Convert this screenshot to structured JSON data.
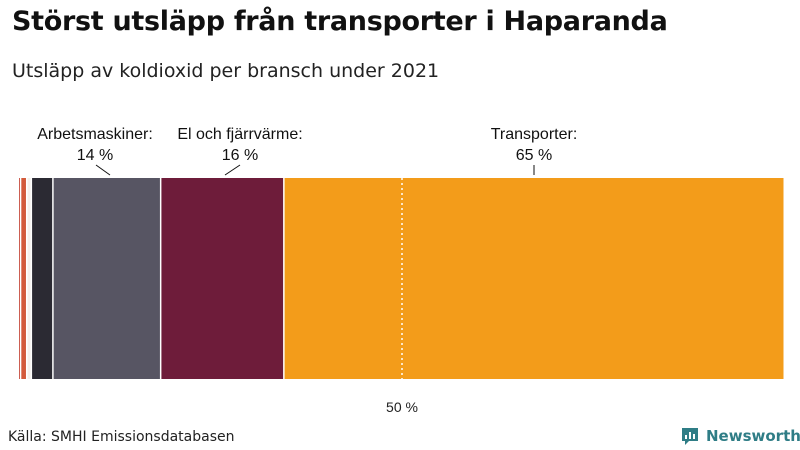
{
  "title": "Störst utsläpp från transporter i Haparanda",
  "subtitle": "Utsläpp av koldioxid per bransch under 2021",
  "source": "Källa: SMHI Emissionsdatabasen",
  "brand": {
    "name": "Newsworthy",
    "icon": "newsworthy-logo-icon",
    "color": "#2f7d86"
  },
  "chart_data": {
    "type": "bar",
    "orientation": "horizontal-stacked-100",
    "segments": [
      {
        "name": "segment-1",
        "value": 0.3,
        "color": "#c0392b"
      },
      {
        "name": "segment-2",
        "value": 0.8,
        "color": "#d35a3a"
      },
      {
        "name": "segment-3",
        "value": 0.6,
        "color": "#f5f0eb"
      },
      {
        "name": "segment-4",
        "value": 2.8,
        "color": "#2b2a33"
      },
      {
        "name": "Arbetsmaskiner",
        "value": 14,
        "color": "#575563",
        "label": "Arbetsmaskiner:",
        "value_label": "14 %"
      },
      {
        "name": "El och fjärrvärme",
        "value": 16,
        "color": "#6e1c3a",
        "label": "El och fjärrvärme:",
        "value_label": "16 %"
      },
      {
        "name": "Transporter",
        "value": 65,
        "color": "#f39c1a",
        "label": "Transporter:",
        "value_label": "65 %"
      }
    ],
    "reference_line": {
      "value": 50,
      "label": "50 %"
    },
    "xlim": [
      0,
      100
    ]
  }
}
